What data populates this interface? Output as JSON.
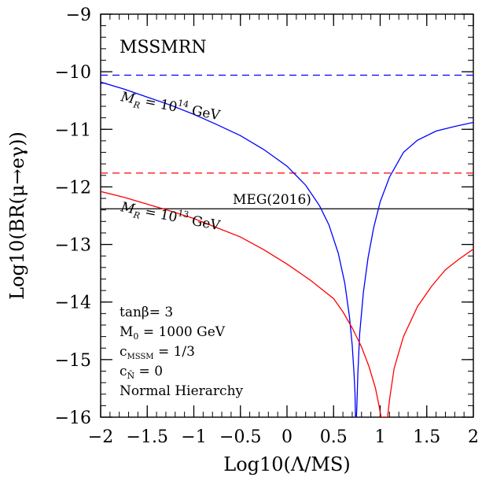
{
  "chart_data": {
    "type": "line",
    "title": "",
    "model_label": "MSSMRN",
    "xlabel": "Log10(Λ/MS)",
    "ylabel": "Log10(BR(μ→eγ))",
    "xlim": [
      -2,
      2
    ],
    "ylim": [
      -16,
      -9
    ],
    "x_ticks": [
      {
        "value": -2,
        "label": "−2"
      },
      {
        "value": -1.5,
        "label": "−1.5"
      },
      {
        "value": -1,
        "label": "−1"
      },
      {
        "value": -0.5,
        "label": "−0.5"
      },
      {
        "value": 0,
        "label": "0"
      },
      {
        "value": 0.5,
        "label": "0.5"
      },
      {
        "value": 1,
        "label": "1"
      },
      {
        "value": 1.5,
        "label": "1.5"
      },
      {
        "value": 2,
        "label": "2"
      }
    ],
    "y_ticks": [
      {
        "value": -9,
        "label": "−9"
      },
      {
        "value": -10,
        "label": "−10"
      },
      {
        "value": -11,
        "label": "−11"
      },
      {
        "value": -12,
        "label": "−12"
      },
      {
        "value": -13,
        "label": "−13"
      },
      {
        "value": -14,
        "label": "−14"
      },
      {
        "value": -15,
        "label": "−15"
      },
      {
        "value": -16,
        "label": "−16"
      }
    ],
    "grid": false,
    "series": [
      {
        "key": "mr14",
        "name": "M_R = 10^14 GeV",
        "color": "#0000ff",
        "dip_x": 0.74,
        "x": [
          -2.0,
          -1.75,
          -1.5,
          -1.25,
          -1.0,
          -0.75,
          -0.5,
          -0.25,
          0.0,
          0.2,
          0.35,
          0.45,
          0.55,
          0.62,
          0.67,
          0.7,
          0.72,
          0.73,
          0.735,
          0.745,
          0.75,
          0.76,
          0.78,
          0.82,
          0.87,
          0.93,
          1.0,
          1.1,
          1.25,
          1.4,
          1.6,
          1.8,
          2.0
        ],
        "y": [
          -10.18,
          -10.3,
          -10.44,
          -10.58,
          -10.74,
          -10.92,
          -11.11,
          -11.35,
          -11.64,
          -11.97,
          -12.33,
          -12.66,
          -13.15,
          -13.67,
          -14.25,
          -14.75,
          -15.26,
          -15.6,
          -16.0,
          -16.0,
          -15.8,
          -15.26,
          -14.55,
          -13.83,
          -13.23,
          -12.71,
          -12.26,
          -11.83,
          -11.4,
          -11.19,
          -11.03,
          -10.95,
          -10.88
        ]
      },
      {
        "key": "mr13",
        "name": "M_R = 10^13 GeV",
        "color": "#ff0000",
        "dip_x": 1.03,
        "x": [
          -2.0,
          -1.75,
          -1.5,
          -1.25,
          -1.0,
          -0.75,
          -0.5,
          -0.25,
          0.0,
          0.25,
          0.5,
          0.6,
          0.7,
          0.8,
          0.88,
          0.95,
          0.99,
          1.01,
          1.02,
          1.08,
          1.1,
          1.15,
          1.25,
          1.4,
          1.55,
          1.7,
          1.85,
          2.0
        ],
        "y": [
          -12.08,
          -12.18,
          -12.3,
          -12.42,
          -12.55,
          -12.71,
          -12.87,
          -13.09,
          -13.34,
          -13.62,
          -13.94,
          -14.17,
          -14.45,
          -14.78,
          -15.12,
          -15.5,
          -15.82,
          -16.0,
          -16.0,
          -16.0,
          -15.7,
          -15.15,
          -14.6,
          -14.08,
          -13.73,
          -13.44,
          -13.25,
          -13.08
        ]
      }
    ],
    "reference_lines": [
      {
        "key": "blue-dashed",
        "y": -10.06,
        "color": "#0000ff",
        "style": "dashed"
      },
      {
        "key": "red-dashed",
        "y": -11.76,
        "color": "#ff0000",
        "style": "dashed"
      },
      {
        "key": "meg",
        "y": -12.38,
        "color": "#000000",
        "style": "solid",
        "label": "MEG(2016)"
      }
    ],
    "annotations": {
      "mr14_label": {
        "prefix": "M",
        "sub": "R",
        "mid": " = 10",
        "sup": "14",
        "suffix": " GeV"
      },
      "mr13_label": {
        "prefix": "M",
        "sub": "R",
        "mid": " = 10",
        "sup": "13",
        "suffix": " GeV"
      },
      "params": [
        {
          "main": "tanβ= 3",
          "sub": "",
          "rest": ""
        },
        {
          "main": "M",
          "sub": "0",
          "rest": " = 1000 GeV"
        },
        {
          "main": "c",
          "sub": "MSSM",
          "rest": " = 1/3"
        },
        {
          "main": "c",
          "sub": "N̄",
          "rest": " = 0"
        },
        {
          "main": "Normal Hierarchy",
          "sub": "",
          "rest": ""
        }
      ]
    }
  }
}
